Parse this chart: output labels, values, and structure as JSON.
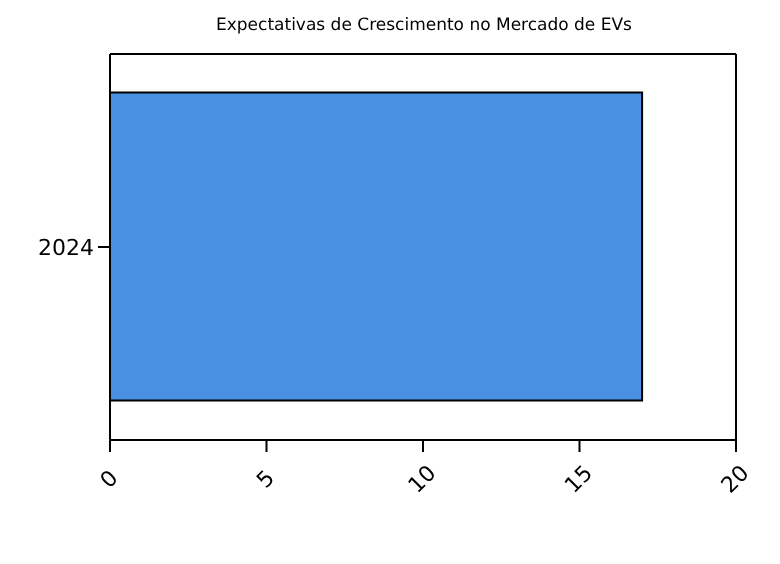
{
  "chart_data": {
    "type": "bar",
    "title": "Expectativas de Crescimento no Mercado de EVs",
    "orientation": "horizontal",
    "categories": [
      "2024"
    ],
    "values": [
      17
    ],
    "color": "#4a90e2",
    "xlim": [
      0,
      20
    ],
    "xticks": [
      0,
      5,
      10,
      15,
      20
    ]
  }
}
